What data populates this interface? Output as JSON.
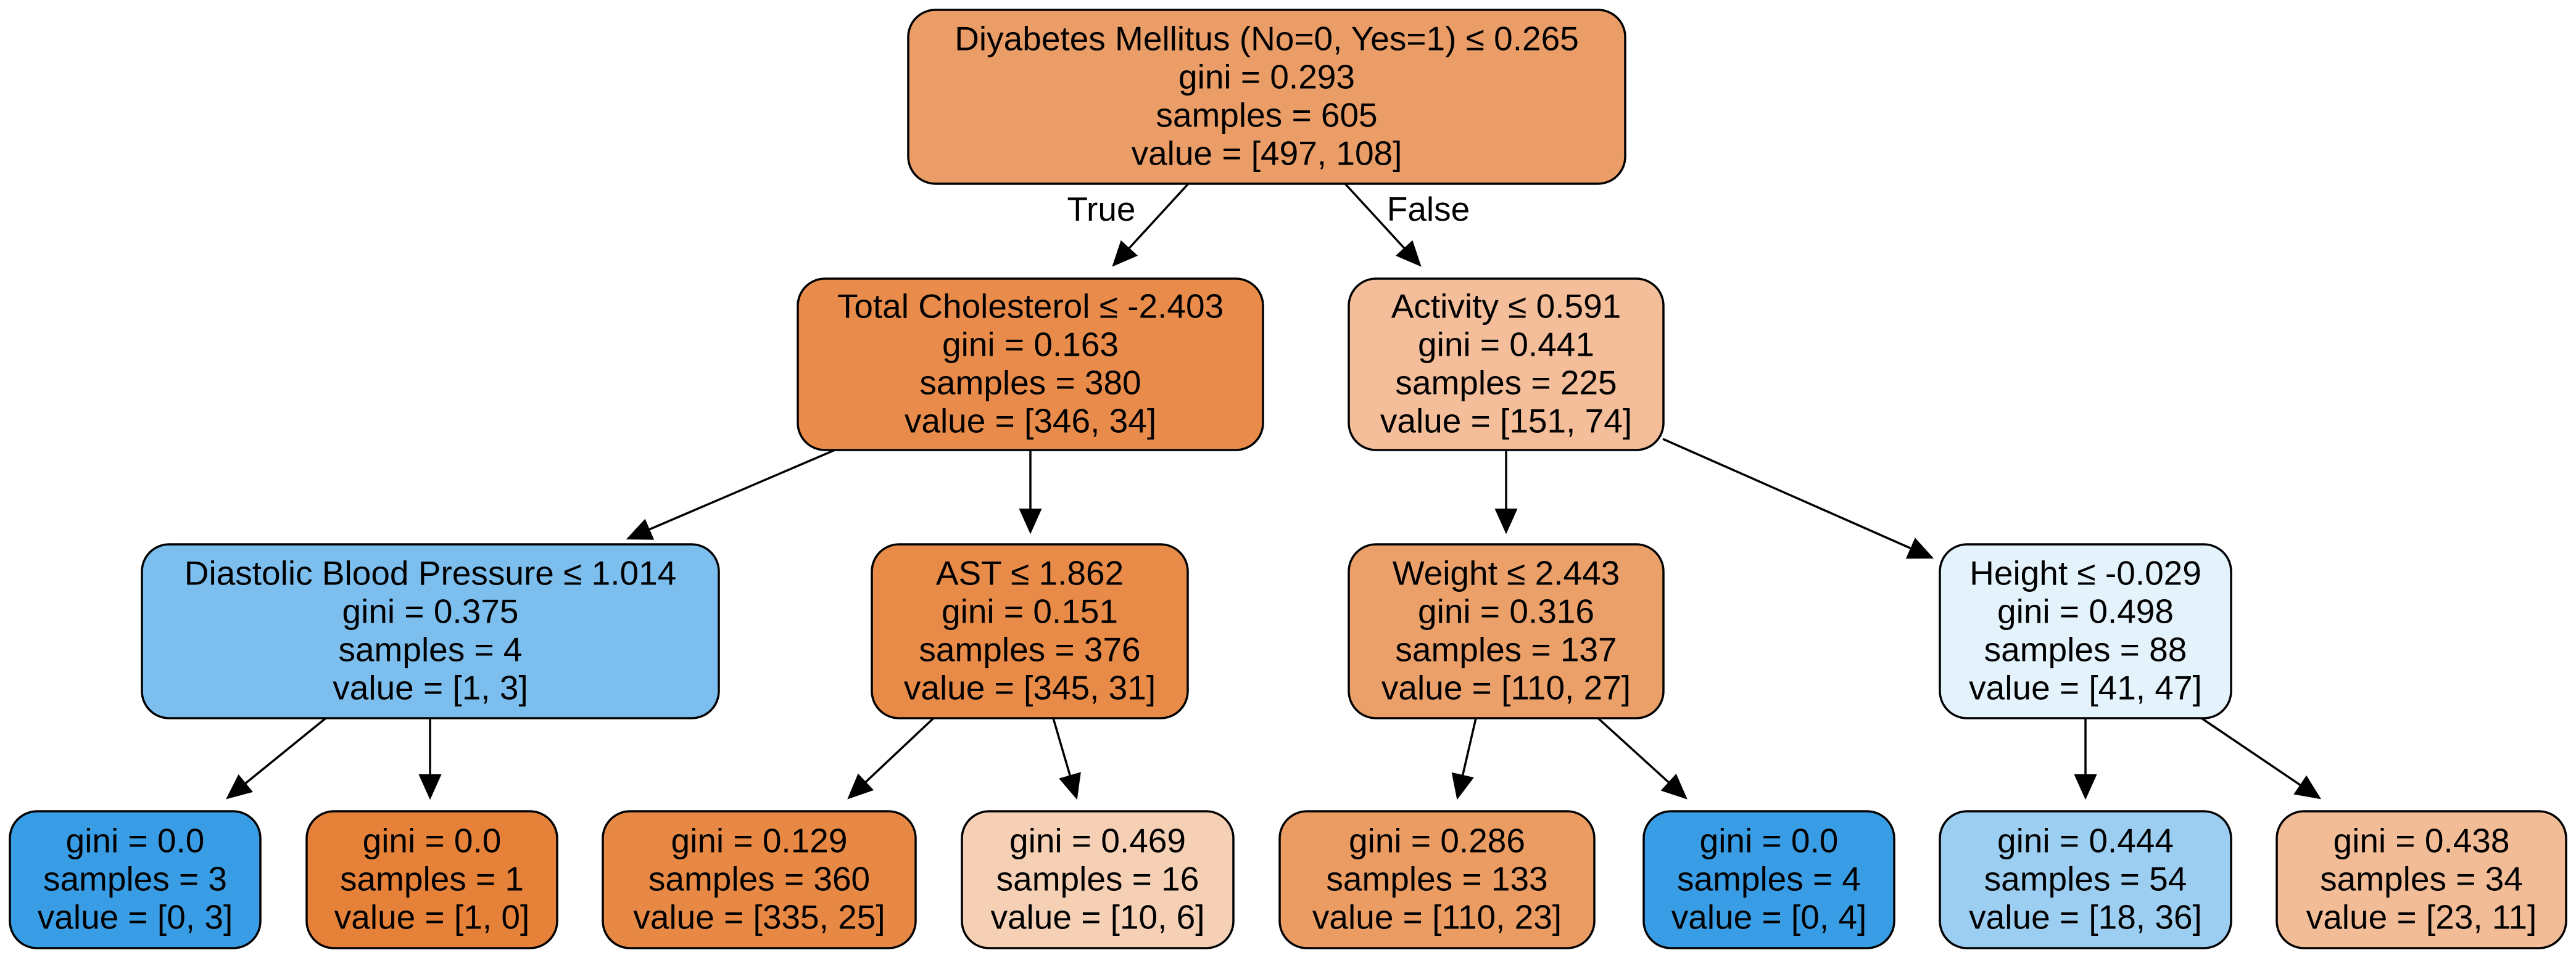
{
  "tree": {
    "edge_labels": {
      "true_label": "True",
      "false_label": "False"
    },
    "nodes": [
      {
        "id": "root",
        "fill": "#eb9d67",
        "lines": [
          "Diyabetes Mellitus (No=0, Yes=1) ≤ 0.265",
          "gini = 0.293",
          "samples = 605",
          "value = [497, 108]"
        ]
      },
      {
        "id": "n1",
        "fill": "#e98c4b",
        "lines": [
          "Total Cholesterol ≤ -2.403",
          "gini = 0.163",
          "samples = 380",
          "value = [346, 34]"
        ]
      },
      {
        "id": "n2",
        "fill": "#f3be99",
        "lines": [
          "Activity ≤ 0.591",
          "gini = 0.441",
          "samples = 225",
          "value = [151, 74]"
        ]
      },
      {
        "id": "n3",
        "fill": "#7cbeee",
        "lines": [
          "Diastolic Blood Pressure ≤ 1.014",
          "gini = 0.375",
          "samples = 4",
          "value = [1, 3]"
        ]
      },
      {
        "id": "n4",
        "fill": "#e88b48",
        "lines": [
          "AST ≤ 1.862",
          "gini = 0.151",
          "samples = 376",
          "value = [345, 31]"
        ]
      },
      {
        "id": "n5",
        "fill": "#eba06a",
        "lines": [
          "Weight ≤ 2.443",
          "gini = 0.316",
          "samples = 137",
          "value = [110, 27]"
        ]
      },
      {
        "id": "n6",
        "fill": "#e4f2fc",
        "lines": [
          "Height ≤ -0.029",
          "gini = 0.498",
          "samples = 88",
          "value = [41, 47]"
        ]
      },
      {
        "id": "n7",
        "fill": "#399de5",
        "lines": [
          "gini = 0.0",
          "samples = 3",
          "value = [0, 3]"
        ]
      },
      {
        "id": "n8",
        "fill": "#e58139",
        "lines": [
          "gini = 0.0",
          "samples = 1",
          "value = [1, 0]"
        ]
      },
      {
        "id": "n9",
        "fill": "#e78945",
        "lines": [
          "gini = 0.129",
          "samples = 360",
          "value = [335, 25]"
        ]
      },
      {
        "id": "n10",
        "fill": "#f5d0b5",
        "lines": [
          "gini = 0.469",
          "samples = 16",
          "value = [10, 6]"
        ]
      },
      {
        "id": "n11",
        "fill": "#eb9c63",
        "lines": [
          "gini = 0.286",
          "samples = 133",
          "value = [110, 23]"
        ]
      },
      {
        "id": "n12",
        "fill": "#399de5",
        "lines": [
          "gini = 0.0",
          "samples = 4",
          "value = [0, 4]"
        ]
      },
      {
        "id": "n13",
        "fill": "#9ccef2",
        "lines": [
          "gini = 0.444",
          "samples = 54",
          "value = [18, 36]"
        ]
      },
      {
        "id": "n14",
        "fill": "#f2bc97",
        "lines": [
          "gini = 0.438",
          "samples = 34",
          "value = [23, 11]"
        ]
      }
    ],
    "edges": [
      {
        "from": "root",
        "to": "n1"
      },
      {
        "from": "root",
        "to": "n2"
      },
      {
        "from": "n1",
        "to": "n3"
      },
      {
        "from": "n1",
        "to": "n4"
      },
      {
        "from": "n2",
        "to": "n5"
      },
      {
        "from": "n2",
        "to": "n6"
      },
      {
        "from": "n3",
        "to": "n7"
      },
      {
        "from": "n3",
        "to": "n8"
      },
      {
        "from": "n4",
        "to": "n9"
      },
      {
        "from": "n4",
        "to": "n10"
      },
      {
        "from": "n5",
        "to": "n11"
      },
      {
        "from": "n5",
        "to": "n12"
      },
      {
        "from": "n6",
        "to": "n13"
      },
      {
        "from": "n6",
        "to": "n14"
      }
    ]
  }
}
